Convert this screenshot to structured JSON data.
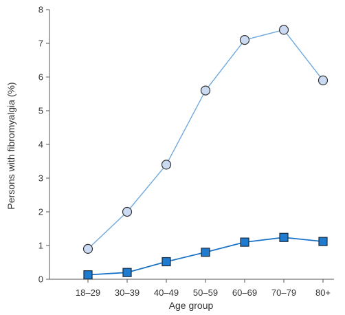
{
  "chart_data": {
    "type": "line",
    "title": "",
    "xlabel": "Age group",
    "ylabel": "Persons with fibromyalgia (%)",
    "categories": [
      "18–29",
      "30–39",
      "40–49",
      "50–59",
      "60–69",
      "70–79",
      "80+"
    ],
    "ylim": [
      0,
      8
    ],
    "yticks": [
      "0",
      "1",
      "2",
      "3",
      "4",
      "5",
      "6",
      "7",
      "8"
    ],
    "grid": false,
    "legend": "none",
    "series": [
      {
        "marker": "circle",
        "color": "#6fa8dc",
        "fill": "#c9daf2",
        "values": [
          0.9,
          2.0,
          3.4,
          5.6,
          7.1,
          7.4,
          5.9
        ]
      },
      {
        "marker": "square",
        "color": "#1a73c8",
        "fill": "#1f7bd0",
        "values": [
          0.13,
          0.2,
          0.52,
          0.8,
          1.1,
          1.24,
          1.12
        ]
      }
    ]
  }
}
